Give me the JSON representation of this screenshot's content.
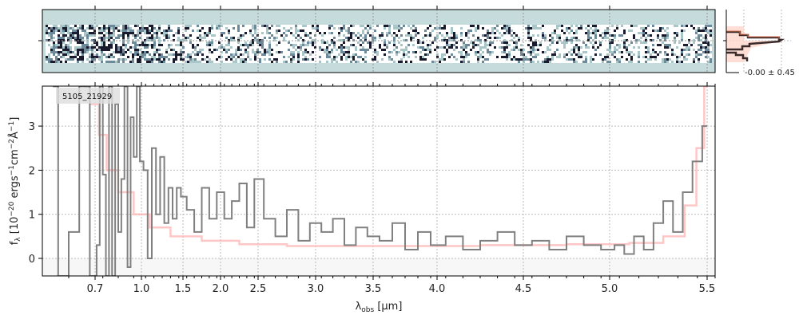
{
  "chart_data": [
    {
      "type": "heatmap",
      "panel": "2D spectrum",
      "colors": {
        "background": "#c6dcdc",
        "dark": "#1a1a2e"
      }
    },
    {
      "type": "line",
      "object_label": "5105_21929",
      "xlabel": "λobs [μm]",
      "ylabel": "fλ [10^-20 ergs^-1 cm^-2 Å^-1]",
      "xticks": [
        0.7,
        1.0,
        1.5,
        2.0,
        2.5,
        3.0,
        3.5,
        4.0,
        4.5,
        5.0,
        5.5
      ],
      "xtick_labels": [
        "0.7",
        "1.0",
        "1.5",
        "2.0",
        "2.5",
        "3.0",
        "3.5",
        "4.0",
        "4.5",
        "5.0",
        "5.5"
      ],
      "yticks": [
        0,
        1,
        2,
        3
      ],
      "ytick_labels": [
        "0",
        "1",
        "2",
        "3"
      ],
      "xlim": [
        0.6,
        5.55
      ],
      "ylim": [
        -0.4,
        3.9
      ],
      "grid": true,
      "series": [
        {
          "role": "flux",
          "color": "#808080",
          "x": [
            0.62,
            0.64,
            0.66,
            0.68,
            0.7,
            0.72,
            0.74,
            0.76,
            0.78,
            0.8,
            0.82,
            0.84,
            0.86,
            0.88,
            0.9,
            0.92,
            0.94,
            0.96,
            0.98,
            1.0,
            1.05,
            1.1,
            1.15,
            1.2,
            1.25,
            1.3,
            1.35,
            1.4,
            1.45,
            1.5,
            1.6,
            1.7,
            1.8,
            1.9,
            2.0,
            2.1,
            2.2,
            2.3,
            2.4,
            2.5,
            2.6,
            2.7,
            2.8,
            2.9,
            3.0,
            3.1,
            3.2,
            3.3,
            3.4,
            3.5,
            3.6,
            3.7,
            3.8,
            3.9,
            4.0,
            4.1,
            4.2,
            4.3,
            4.4,
            4.5,
            4.6,
            4.7,
            4.8,
            4.9,
            5.0,
            5.05,
            5.1,
            5.15,
            5.2,
            5.25,
            5.3,
            5.35,
            5.4,
            5.45,
            5.5
          ],
          "y": [
            3.9,
            -0.4,
            0.6,
            3.9,
            -0.4,
            0.3,
            3.9,
            1.9,
            -0.4,
            3.9,
            -0.4,
            3.5,
            0.6,
            1.8,
            3.9,
            -0.2,
            3.2,
            2.3,
            3.9,
            2.2,
            2.0,
            0.0,
            2.5,
            1.0,
            2.3,
            0.8,
            1.6,
            0.9,
            1.6,
            1.4,
            1.1,
            0.6,
            1.6,
            0.9,
            1.5,
            0.9,
            1.3,
            1.7,
            0.7,
            1.8,
            0.9,
            0.5,
            1.1,
            0.4,
            0.8,
            0.6,
            0.9,
            0.3,
            0.7,
            0.5,
            0.4,
            0.8,
            0.2,
            0.6,
            0.3,
            0.5,
            0.2,
            0.4,
            0.6,
            0.3,
            0.4,
            0.2,
            0.5,
            0.3,
            0.2,
            0.3,
            0.1,
            0.5,
            0.2,
            0.8,
            1.3,
            0.6,
            1.5,
            2.2,
            3.0
          ]
        },
        {
          "role": "model",
          "color": "#ffb3b3",
          "x": [
            0.68,
            0.7,
            0.75,
            0.8,
            0.9,
            1.0,
            1.2,
            1.5,
            2.0,
            2.5,
            3.0,
            3.5,
            4.0,
            4.5,
            5.0,
            5.2,
            5.35,
            5.42,
            5.47,
            5.5
          ],
          "y": [
            3.9,
            3.5,
            2.8,
            2.0,
            1.5,
            1.0,
            0.7,
            0.5,
            0.4,
            0.32,
            0.28,
            0.28,
            0.28,
            0.3,
            0.32,
            0.35,
            0.5,
            1.2,
            2.5,
            3.9
          ]
        }
      ]
    },
    {
      "type": "bar",
      "panel": "residual histogram",
      "annotation": "-0.00 ± 0.45"
    }
  ]
}
